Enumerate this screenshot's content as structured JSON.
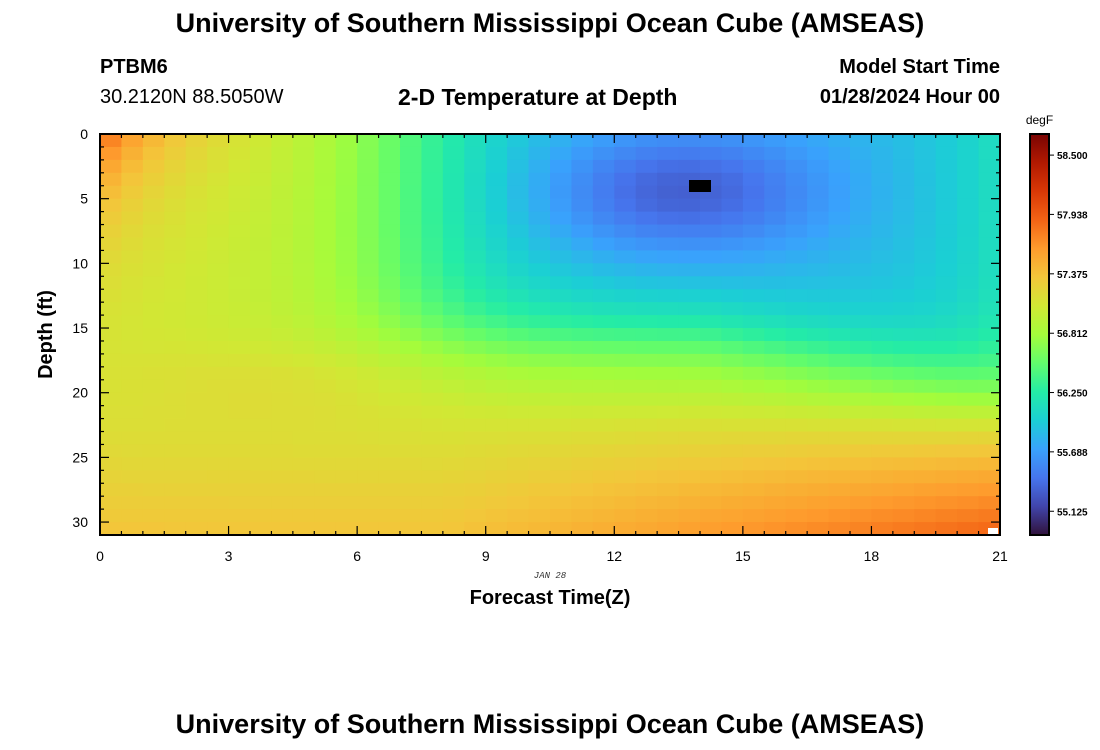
{
  "header": {
    "title": "University of Southern Mississippi Ocean Cube (AMSEAS)",
    "station_id": "PTBM6",
    "coordinates": "30.2120N  88.5050W",
    "subtitle": "2-D Temperature at Depth",
    "model_start_label": "Model Start Time",
    "model_start_value": "01/28/2024 Hour 00"
  },
  "footer": {
    "title": "University of Southern Mississippi Ocean Cube (AMSEAS)"
  },
  "chart_data": {
    "type": "heatmap",
    "title": "2-D Temperature at Depth",
    "xlabel": "Forecast Time(Z)",
    "ylabel": "Depth (ft)",
    "x_range": [
      0,
      21
    ],
    "y_range": [
      0,
      31
    ],
    "y_inverted": true,
    "x_ticks": [
      "0",
      "3",
      "6",
      "9",
      "12",
      "15",
      "18",
      "21"
    ],
    "y_ticks": [
      "0",
      "5",
      "10",
      "15",
      "20",
      "25",
      "30"
    ],
    "date_label": "JAN 28",
    "grid_cols": 42,
    "grid_rows": 31,
    "colorbar": {
      "unit": "degF",
      "min": 54.9,
      "max": 58.7,
      "labels": [
        "58.500",
        "57.938",
        "57.375",
        "56.812",
        "56.250",
        "55.688",
        "55.125"
      ],
      "colormap": [
        "#30123b",
        "#4145ab",
        "#4675ed",
        "#39a2fc",
        "#1bcfd4",
        "#24eca6",
        "#61fc6c",
        "#a4fc3b",
        "#d1e834",
        "#f3c63a",
        "#fe9b2d",
        "#f36315",
        "#d93806",
        "#b11901",
        "#7a0403"
      ]
    }
  }
}
